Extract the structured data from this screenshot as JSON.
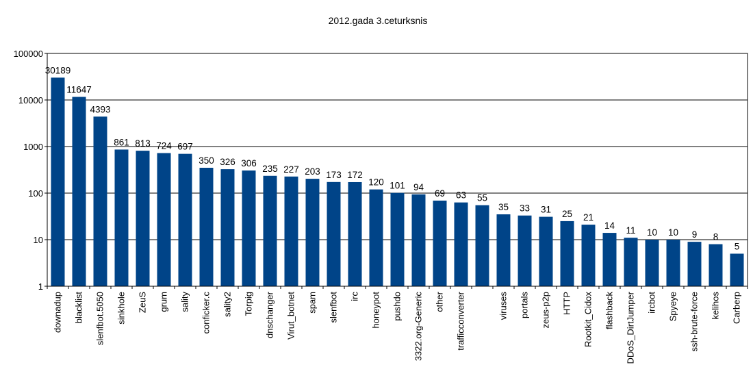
{
  "chart_data": {
    "type": "bar",
    "title": "2012.gada 3.ceturksnis",
    "xlabel": "",
    "ylabel": "",
    "yscale": "log",
    "ylim": [
      1,
      100000
    ],
    "yticks": [
      "1",
      "10",
      "100",
      "1000",
      "10000",
      "100000"
    ],
    "grid": true,
    "legend": "none",
    "bar_color": "#004488",
    "categories": [
      "downadup",
      "blacklist",
      "slenfbot.5050",
      "sinkhole",
      "ZeuS",
      "grum",
      "sality",
      "conficker.c",
      "sality2",
      "Torpig",
      "dnschanger",
      "Virut_botnet",
      "spam",
      "slenfbot",
      "irc",
      "honeypot",
      "pushdo",
      "3322.org-Generic",
      "other",
      "trafficconverter",
      "",
      "viruses",
      "portals",
      "zeus-p2p",
      "HTTP",
      "Rootkit_Cidox",
      "flashback",
      "DDoS_DirtJumper",
      "ircbot",
      "Spyeye",
      "ssh-brute-force",
      "kelihos",
      "Carberp"
    ],
    "values": [
      30189,
      11647,
      4393,
      861,
      813,
      724,
      697,
      350,
      326,
      306,
      235,
      227,
      203,
      173,
      172,
      120,
      101,
      94,
      69,
      63,
      55,
      35,
      33,
      31,
      25,
      21,
      14,
      11,
      10,
      10,
      9,
      8,
      5
    ]
  }
}
